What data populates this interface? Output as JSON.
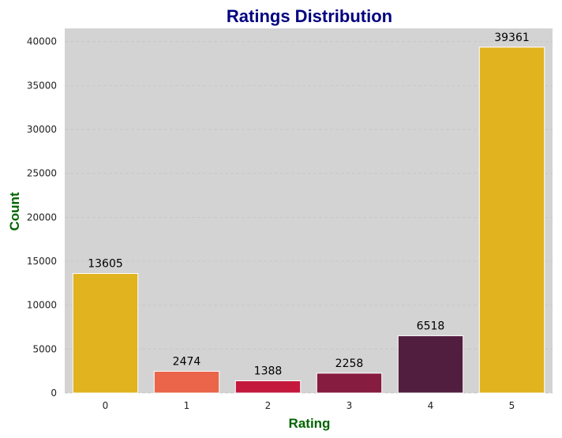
{
  "chart_data": {
    "type": "bar",
    "title": "Ratings Distribution",
    "xlabel": "Rating",
    "ylabel": "Count",
    "categories": [
      "0",
      "1",
      "2",
      "3",
      "4",
      "5"
    ],
    "values": [
      13605,
      2474,
      1388,
      2258,
      6518,
      39361
    ],
    "bar_colors": [
      "#e0b31f",
      "#ea654a",
      "#c4183c",
      "#861c3f",
      "#521e40",
      "#e0b31f"
    ],
    "data_labels": [
      "13605",
      "2474",
      "1388",
      "2258",
      "6518",
      "39361"
    ],
    "ylim": [
      0,
      41500
    ],
    "yticks": [
      0,
      5000,
      10000,
      15000,
      20000,
      25000,
      30000,
      35000,
      40000
    ],
    "ytick_labels": [
      "0",
      "5000",
      "10000",
      "15000",
      "20000",
      "25000",
      "30000",
      "35000",
      "40000"
    ],
    "grid": "y-dashed",
    "plot_background": "#d3d3d3",
    "title_color": "#000080",
    "axis_label_color": "#006400"
  }
}
